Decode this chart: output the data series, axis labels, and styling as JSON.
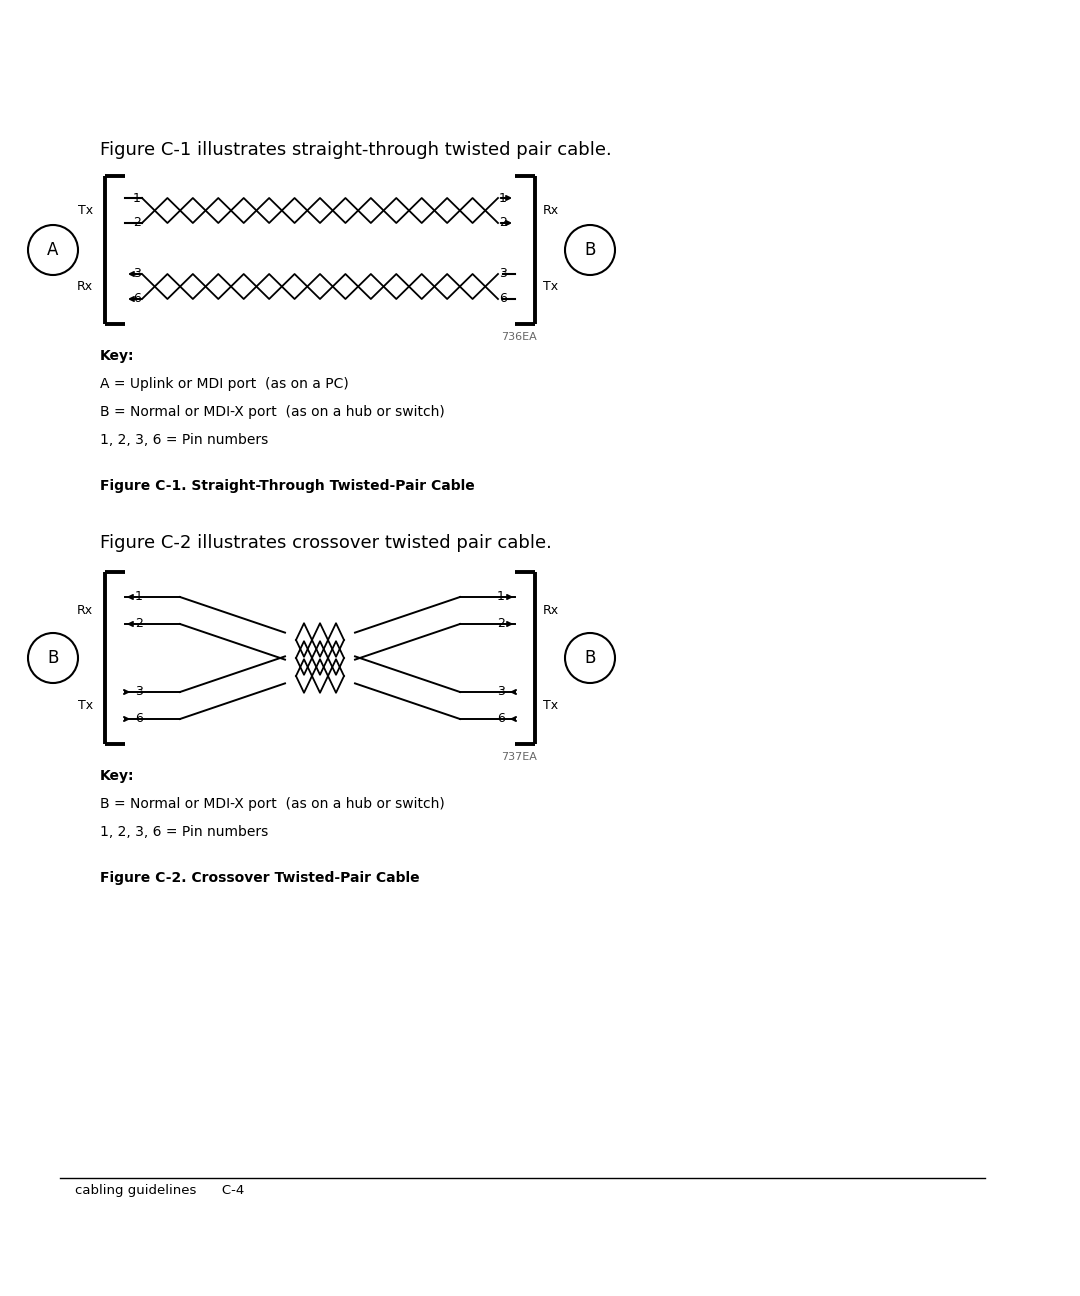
{
  "fig_width": 10.8,
  "fig_height": 12.96,
  "bg_color": "#ffffff",
  "title1": "Figure C-1 illustrates straight-through twisted pair cable.",
  "title2": "Figure C-2 illustrates crossover twisted pair cable.",
  "caption1": "Figure C-1. Straight-Through Twisted-Pair Cable",
  "caption2": "Figure C-2. Crossover Twisted-Pair Cable",
  "key1_lines": [
    "Key:",
    "A = Uplink or MDI port  (as on a PC)",
    "B = Normal or MDI-X port  (as on a hub or switch)",
    "1, 2, 3, 6 = Pin numbers"
  ],
  "key2_lines": [
    "Key:",
    "B = Normal or MDI-X port  (as on a hub or switch)",
    "1, 2, 3, 6 = Pin numbers"
  ],
  "watermark1": "736EA",
  "watermark2": "737EA",
  "footer": "cabling guidelines      C-4"
}
